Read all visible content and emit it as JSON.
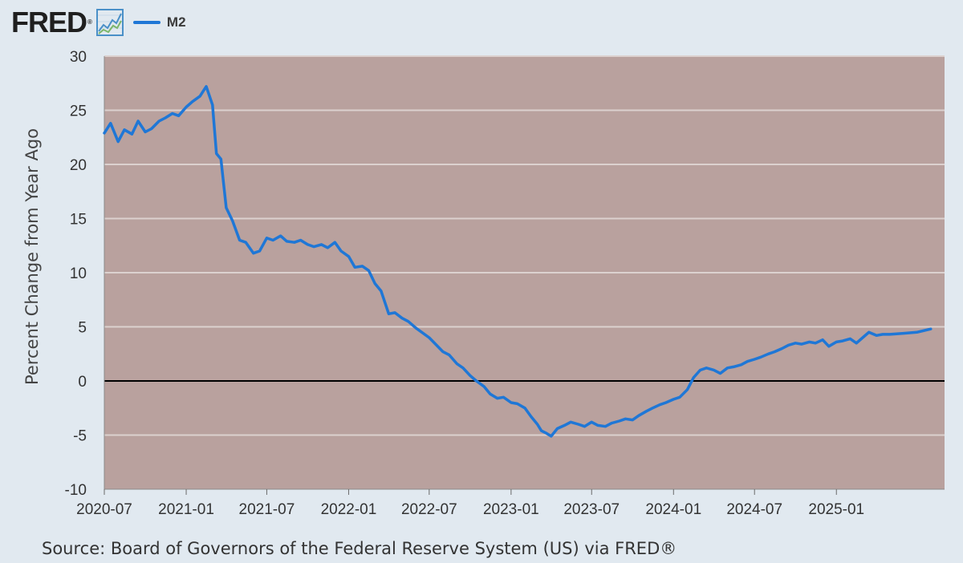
{
  "header": {
    "logo_text": "FRED",
    "logo_mark": "®",
    "graph_icon": "line-graph-icon"
  },
  "source_text": "Source: Board of Governors of the Federal Reserve System (US) via FRED®",
  "colors": {
    "page_bg": "#e1e9f0",
    "plot_bg": "#b9a19e",
    "grid": "#dcd1cf",
    "series": "#1f77d6",
    "zero_line": "#000000"
  },
  "chart_data": {
    "type": "line",
    "title": "",
    "xlabel": "",
    "ylabel": "Percent Change from Year Ago",
    "ylim": [
      -10,
      30
    ],
    "yticks": [
      30,
      25,
      20,
      15,
      10,
      5,
      0,
      -5,
      -10
    ],
    "ytick_labels": [
      "30",
      "25",
      "20",
      "15",
      "10",
      "5",
      "0",
      "-5",
      "-10"
    ],
    "xlim": [
      "2020-07",
      "2025-09"
    ],
    "xticks": [
      "2020-07",
      "2021-01",
      "2021-07",
      "2022-01",
      "2022-07",
      "2023-01",
      "2023-07",
      "2024-01",
      "2024-07",
      "2025-01"
    ],
    "grid": true,
    "legend": "top-left",
    "reference_line": 0,
    "series": [
      {
        "name": "M2",
        "points": [
          [
            "2020-07-01",
            22.9
          ],
          [
            "2020-07-15",
            23.8
          ],
          [
            "2020-08-01",
            22.1
          ],
          [
            "2020-08-15",
            23.2
          ],
          [
            "2020-09-01",
            22.8
          ],
          [
            "2020-09-15",
            24.0
          ],
          [
            "2020-10-01",
            23.0
          ],
          [
            "2020-10-15",
            23.3
          ],
          [
            "2020-11-01",
            24.0
          ],
          [
            "2020-11-15",
            24.3
          ],
          [
            "2020-12-01",
            24.7
          ],
          [
            "2020-12-15",
            24.5
          ],
          [
            "2021-01-01",
            25.3
          ],
          [
            "2021-01-15",
            25.8
          ],
          [
            "2021-02-01",
            26.3
          ],
          [
            "2021-02-15",
            27.2
          ],
          [
            "2021-03-01",
            25.5
          ],
          [
            "2021-03-10",
            21.0
          ],
          [
            "2021-03-20",
            20.5
          ],
          [
            "2021-04-01",
            16.0
          ],
          [
            "2021-04-15",
            14.8
          ],
          [
            "2021-05-01",
            13.0
          ],
          [
            "2021-05-15",
            12.8
          ],
          [
            "2021-06-01",
            11.8
          ],
          [
            "2021-06-15",
            12.0
          ],
          [
            "2021-07-01",
            13.2
          ],
          [
            "2021-07-15",
            13.0
          ],
          [
            "2021-08-01",
            13.4
          ],
          [
            "2021-08-15",
            12.9
          ],
          [
            "2021-09-01",
            12.8
          ],
          [
            "2021-09-15",
            13.0
          ],
          [
            "2021-10-01",
            12.6
          ],
          [
            "2021-10-15",
            12.4
          ],
          [
            "2021-11-01",
            12.6
          ],
          [
            "2021-11-15",
            12.3
          ],
          [
            "2021-12-01",
            12.8
          ],
          [
            "2021-12-15",
            12.0
          ],
          [
            "2022-01-01",
            11.5
          ],
          [
            "2022-01-15",
            10.5
          ],
          [
            "2022-02-01",
            10.6
          ],
          [
            "2022-02-15",
            10.2
          ],
          [
            "2022-03-01",
            9.0
          ],
          [
            "2022-03-15",
            8.3
          ],
          [
            "2022-04-01",
            6.2
          ],
          [
            "2022-04-15",
            6.3
          ],
          [
            "2022-05-01",
            5.8
          ],
          [
            "2022-05-15",
            5.5
          ],
          [
            "2022-06-01",
            4.9
          ],
          [
            "2022-07-01",
            4.0
          ],
          [
            "2022-08-01",
            2.7
          ],
          [
            "2022-08-15",
            2.4
          ],
          [
            "2022-09-01",
            1.6
          ],
          [
            "2022-09-15",
            1.2
          ],
          [
            "2022-10-01",
            0.5
          ],
          [
            "2022-10-15",
            0.0
          ],
          [
            "2022-11-01",
            -0.5
          ],
          [
            "2022-11-15",
            -1.2
          ],
          [
            "2022-12-01",
            -1.6
          ],
          [
            "2022-12-15",
            -1.5
          ],
          [
            "2023-01-01",
            -2.0
          ],
          [
            "2023-01-15",
            -2.1
          ],
          [
            "2023-02-01",
            -2.5
          ],
          [
            "2023-02-15",
            -3.3
          ],
          [
            "2023-03-01",
            -4.0
          ],
          [
            "2023-03-10",
            -4.6
          ],
          [
            "2023-03-20",
            -4.8
          ],
          [
            "2023-04-01",
            -5.1
          ],
          [
            "2023-04-15",
            -4.4
          ],
          [
            "2023-05-01",
            -4.1
          ],
          [
            "2023-05-15",
            -3.8
          ],
          [
            "2023-06-01",
            -4.0
          ],
          [
            "2023-06-15",
            -4.2
          ],
          [
            "2023-07-01",
            -3.8
          ],
          [
            "2023-07-15",
            -4.1
          ],
          [
            "2023-08-01",
            -4.2
          ],
          [
            "2023-08-15",
            -3.9
          ],
          [
            "2023-09-01",
            -3.7
          ],
          [
            "2023-09-15",
            -3.5
          ],
          [
            "2023-10-01",
            -3.6
          ],
          [
            "2023-10-15",
            -3.2
          ],
          [
            "2023-11-01",
            -2.8
          ],
          [
            "2023-11-15",
            -2.5
          ],
          [
            "2023-12-01",
            -2.2
          ],
          [
            "2023-12-15",
            -2.0
          ],
          [
            "2024-01-01",
            -1.7
          ],
          [
            "2024-01-15",
            -1.5
          ],
          [
            "2024-02-01",
            -0.8
          ],
          [
            "2024-02-15",
            0.3
          ],
          [
            "2024-03-01",
            1.0
          ],
          [
            "2024-03-15",
            1.2
          ],
          [
            "2024-04-01",
            1.0
          ],
          [
            "2024-04-15",
            0.7
          ],
          [
            "2024-05-01",
            1.2
          ],
          [
            "2024-05-15",
            1.3
          ],
          [
            "2024-06-01",
            1.5
          ],
          [
            "2024-06-15",
            1.8
          ],
          [
            "2024-07-01",
            2.0
          ],
          [
            "2024-07-15",
            2.2
          ],
          [
            "2024-08-01",
            2.5
          ],
          [
            "2024-08-15",
            2.7
          ],
          [
            "2024-09-01",
            3.0
          ],
          [
            "2024-09-15",
            3.3
          ],
          [
            "2024-10-01",
            3.5
          ],
          [
            "2024-10-15",
            3.4
          ],
          [
            "2024-11-01",
            3.6
          ],
          [
            "2024-11-15",
            3.5
          ],
          [
            "2024-12-01",
            3.8
          ],
          [
            "2024-12-15",
            3.2
          ],
          [
            "2025-01-01",
            3.6
          ],
          [
            "2025-01-15",
            3.7
          ],
          [
            "2025-02-01",
            3.9
          ],
          [
            "2025-02-15",
            3.5
          ],
          [
            "2025-03-01",
            4.0
          ],
          [
            "2025-03-15",
            4.5
          ],
          [
            "2025-04-01",
            4.2
          ],
          [
            "2025-04-15",
            4.3
          ],
          [
            "2025-05-01",
            4.3
          ],
          [
            "2025-06-01",
            4.4
          ],
          [
            "2025-07-01",
            4.5
          ],
          [
            "2025-08-01",
            4.8
          ]
        ]
      }
    ]
  }
}
